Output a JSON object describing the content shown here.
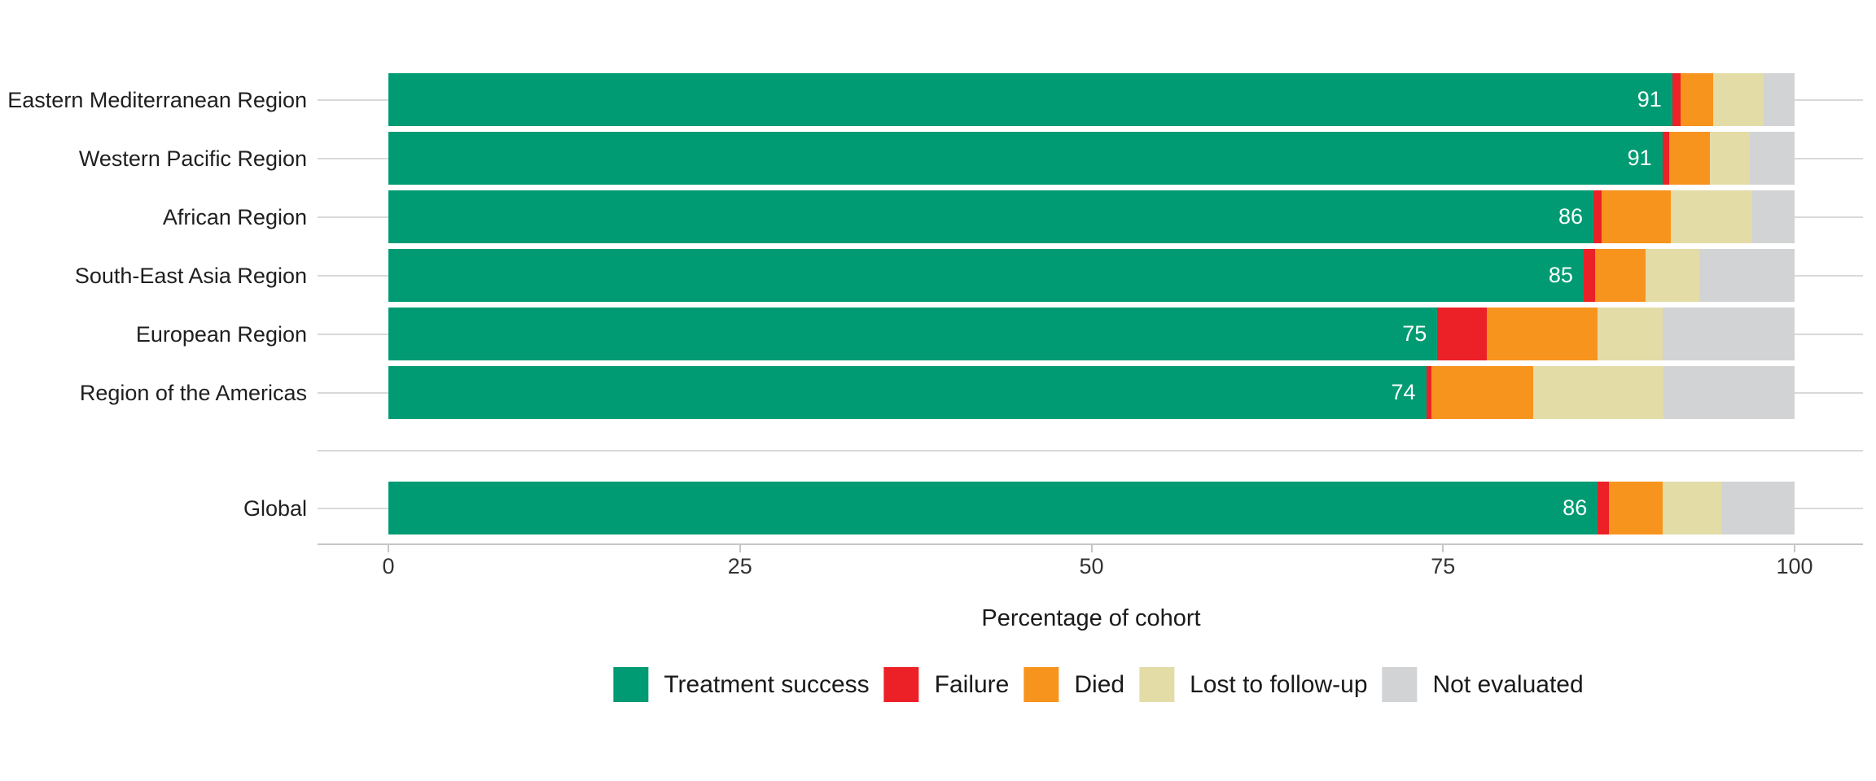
{
  "chart_data": {
    "type": "bar",
    "stacked": true,
    "orientation": "horizontal",
    "title": "",
    "xlabel": "Percentage of cohort",
    "ylabel": "",
    "xlim": [
      0,
      100
    ],
    "x_ticks": [
      "0",
      "25",
      "50",
      "75",
      "100"
    ],
    "grid": "horizontal category gridlines, light gray",
    "legend_position": "bottom",
    "categories": [
      "Eastern Mediterranean Region",
      "Western Pacific Region",
      "African Region",
      "South-East Asia Region",
      "European Region",
      "Region of the Americas",
      "Global"
    ],
    "bar_value_labels": [
      "91",
      "91",
      "86",
      "85",
      "75",
      "74",
      "86"
    ],
    "series": [
      {
        "name": "Treatment success",
        "color": "#009B72",
        "values": [
          91.3,
          90.6,
          85.7,
          85.0,
          74.6,
          73.8,
          86.0
        ]
      },
      {
        "name": "Failure",
        "color": "#EC2127",
        "values": [
          0.6,
          0.5,
          0.6,
          0.8,
          3.5,
          0.4,
          0.8
        ]
      },
      {
        "name": "Died",
        "color": "#F7941E",
        "values": [
          2.3,
          2.9,
          4.9,
          3.6,
          7.9,
          7.2,
          3.8
        ]
      },
      {
        "name": "Lost to follow-up",
        "color": "#E4DCA7",
        "values": [
          3.6,
          2.8,
          5.8,
          3.8,
          4.6,
          9.3,
          4.2
        ]
      },
      {
        "name": "Not evaluated",
        "color": "#D1D3D4",
        "values": [
          2.2,
          3.2,
          3.0,
          6.8,
          9.4,
          9.3,
          5.2
        ]
      }
    ],
    "colors": {
      "treatment_success": "#009B72",
      "failure": "#EC2127",
      "died": "#F7941E",
      "lost_to_follow_up": "#E4DCA7",
      "not_evaluated": "#D1D3D4",
      "gridline": "#D9D9D9",
      "axis": "#C6C6C8",
      "bar_value_text": "#FFFFFF"
    }
  }
}
